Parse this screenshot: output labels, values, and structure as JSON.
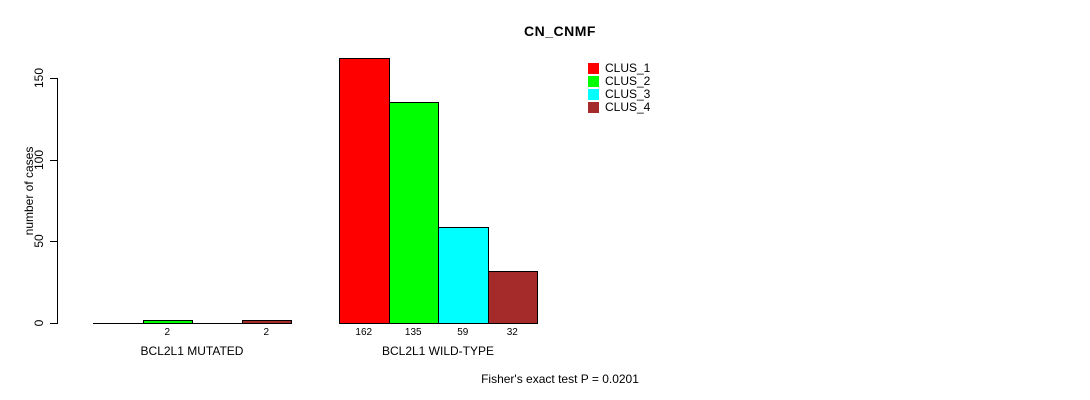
{
  "chart_data": {
    "type": "bar",
    "grouped": true,
    "title": "CN_CNMF",
    "xlabel": "",
    "ylabel": "number of cases",
    "ylim": [
      0,
      150
    ],
    "yticks": [
      0,
      50,
      100,
      150
    ],
    "categories": [
      "BCL2L1 MUTATED",
      "BCL2L1 WILD-TYPE"
    ],
    "series": [
      {
        "name": "CLUS_1",
        "color": "#FF0000",
        "values": [
          0,
          162
        ]
      },
      {
        "name": "CLUS_2",
        "color": "#00FF00",
        "values": [
          2,
          135
        ]
      },
      {
        "name": "CLUS_3",
        "color": "#00FFFF",
        "values": [
          0,
          59
        ]
      },
      {
        "name": "CLUS_4",
        "color": "#A52A2A",
        "values": [
          2,
          32
        ]
      }
    ],
    "bar_value_labels_shown": true,
    "zero_bars_unlabeled": true,
    "legend_position": "top-right",
    "grid": false,
    "annotation": "Fisher's exact test P = 0.0201"
  }
}
